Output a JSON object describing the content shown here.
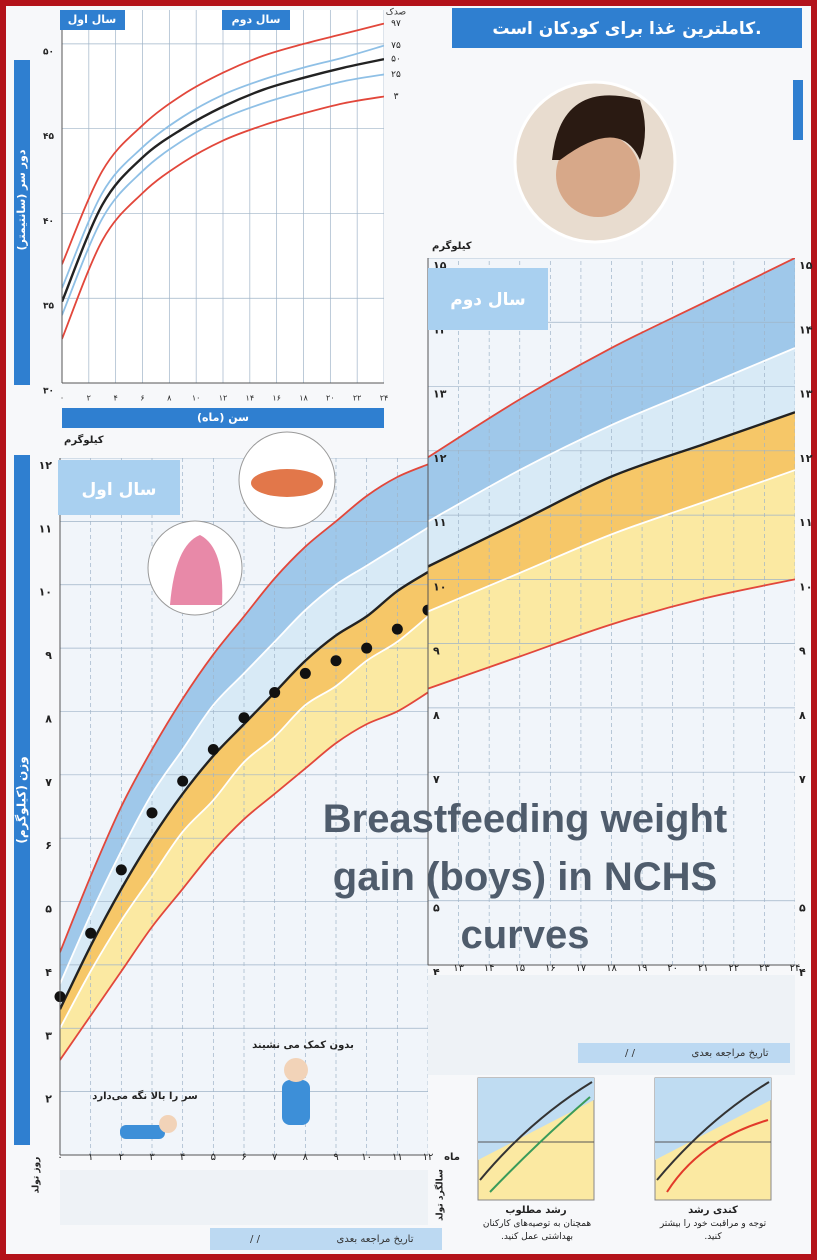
{
  "header": {
    "title": "کاملترین غذا برای کودکان است."
  },
  "overlay_title": "Breastfeeding weight gain (boys) in NCHS curves",
  "chart_data": [
    {
      "type": "line",
      "year_labels": [
        "سال اول",
        "سال دوم"
      ],
      "xlabel": "سن (ماه)",
      "ylabel": "دور سر (سانتیمتر)",
      "legend_title": "صدک",
      "x": [
        0,
        3,
        6,
        9,
        12,
        15,
        18,
        21,
        24
      ],
      "xlim": [
        0,
        24
      ],
      "ylim": [
        30,
        52
      ],
      "xticks": [
        {
          "value": 0,
          "label": "۰"
        },
        {
          "value": 2,
          "label": "۲"
        },
        {
          "value": 4,
          "label": "۴"
        },
        {
          "value": 6,
          "label": "۶"
        },
        {
          "value": 8,
          "label": "۸"
        },
        {
          "value": 10,
          "label": "۱۰"
        },
        {
          "value": 12,
          "label": "۱۲"
        },
        {
          "value": 14,
          "label": "۱۴"
        },
        {
          "value": 16,
          "label": "۱۶"
        },
        {
          "value": 18,
          "label": "۱۸"
        },
        {
          "value": 20,
          "label": "۲۰"
        },
        {
          "value": 22,
          "label": "۲۲"
        },
        {
          "value": 24,
          "label": "۲۴"
        }
      ],
      "yticks": [
        {
          "value": 30,
          "label": "۳۰"
        },
        {
          "value": 35,
          "label": "۳۵"
        },
        {
          "value": 40,
          "label": "۴۰"
        },
        {
          "value": 45,
          "label": "۴۵"
        },
        {
          "value": 50,
          "label": "۵۰"
        }
      ],
      "grid": true,
      "series": [
        {
          "name": "۹۷",
          "color": "#e2473b",
          "values": [
            37.0,
            42.5,
            45.2,
            47.0,
            48.3,
            49.3,
            50.0,
            50.6,
            51.2
          ]
        },
        {
          "name": "۷۵",
          "color": "#8fc0e6",
          "values": [
            35.6,
            41.2,
            43.9,
            45.7,
            47.0,
            47.9,
            48.6,
            49.2,
            49.9
          ]
        },
        {
          "name": "۵۰",
          "color": "#222222",
          "values": [
            34.8,
            40.5,
            43.3,
            45.0,
            46.3,
            47.3,
            48.0,
            48.6,
            49.1
          ]
        },
        {
          "name": "۲۵",
          "color": "#8fc0e6",
          "values": [
            34.0,
            39.7,
            42.5,
            44.3,
            45.6,
            46.5,
            47.2,
            47.8,
            48.2
          ]
        },
        {
          "name": "۳",
          "color": "#e2473b",
          "values": [
            32.6,
            38.4,
            41.2,
            43.0,
            44.3,
            45.2,
            45.9,
            46.5,
            46.9
          ]
        }
      ]
    },
    {
      "type": "line",
      "year_label": "سال اول",
      "y_unit": "کیلوگرم",
      "ylabel": "وزن (کیلوگرم)",
      "x_unit": "ماه",
      "start_label": "روز تولد",
      "end_label": "سالگرد تولد",
      "x": [
        0,
        1,
        2,
        3,
        4,
        5,
        6,
        7,
        8,
        9,
        10,
        11,
        12
      ],
      "xlim": [
        0,
        12
      ],
      "ylim": [
        1,
        12
      ],
      "xticks": [
        {
          "value": 0,
          "label": "۰"
        },
        {
          "value": 1,
          "label": "۱"
        },
        {
          "value": 2,
          "label": "۲"
        },
        {
          "value": 3,
          "label": "۳"
        },
        {
          "value": 4,
          "label": "۴"
        },
        {
          "value": 5,
          "label": "۵"
        },
        {
          "value": 6,
          "label": "۶"
        },
        {
          "value": 7,
          "label": "۷"
        },
        {
          "value": 8,
          "label": "۸"
        },
        {
          "value": 9,
          "label": "۹"
        },
        {
          "value": 10,
          "label": "۱۰"
        },
        {
          "value": 11,
          "label": "۱۱"
        },
        {
          "value": 12,
          "label": "۱۲"
        }
      ],
      "yticks": [
        {
          "value": 2,
          "label": "۲"
        },
        {
          "value": 3,
          "label": "۳"
        },
        {
          "value": 4,
          "label": "۴"
        },
        {
          "value": 5,
          "label": "۵"
        },
        {
          "value": 6,
          "label": "۶"
        },
        {
          "value": 7,
          "label": "۷"
        },
        {
          "value": 8,
          "label": "۸"
        },
        {
          "value": 9,
          "label": "۹"
        },
        {
          "value": 10,
          "label": "۱۰"
        },
        {
          "value": 11,
          "label": "۱۱"
        },
        {
          "value": 12,
          "label": "۱۲"
        }
      ],
      "grid": true,
      "band_colors": [
        "#9fc8ea",
        "#d8eaf6",
        "#f6c768",
        "#fbe9a2"
      ],
      "series": [
        {
          "color": "#e2473b",
          "style": "line",
          "values": [
            4.2,
            5.4,
            6.5,
            7.4,
            8.2,
            8.9,
            9.5,
            10.1,
            10.6,
            11.0,
            11.4,
            11.7,
            11.9
          ]
        },
        {
          "color": "#ffffff",
          "style": "line",
          "values": [
            3.7,
            4.8,
            5.8,
            6.7,
            7.4,
            8.1,
            8.6,
            9.1,
            9.6,
            10.0,
            10.3,
            10.6,
            10.9
          ]
        },
        {
          "color": "#222222",
          "style": "line",
          "values": [
            3.3,
            4.3,
            5.2,
            6.0,
            6.7,
            7.3,
            7.8,
            8.3,
            8.8,
            9.2,
            9.5,
            9.9,
            10.2
          ]
        },
        {
          "color": "#ffffff",
          "style": "line",
          "values": [
            3.0,
            3.9,
            4.7,
            5.4,
            6.1,
            6.6,
            7.2,
            7.6,
            8.1,
            8.4,
            8.8,
            9.1,
            9.5
          ]
        },
        {
          "color": "#e2473b",
          "style": "line",
          "values": [
            2.5,
            3.2,
            3.9,
            4.6,
            5.2,
            5.8,
            6.3,
            6.7,
            7.1,
            7.5,
            7.8,
            8.0,
            8.3
          ]
        },
        {
          "color": "#111111",
          "style": "points",
          "values": [
            3.5,
            4.5,
            5.5,
            6.4,
            6.9,
            7.4,
            7.9,
            8.3,
            8.6,
            8.8,
            9.0,
            9.3,
            9.6
          ]
        }
      ]
    },
    {
      "type": "line",
      "year_label": "سال دوم",
      "y_unit": "کیلوگرم",
      "x": [
        12,
        15,
        18,
        21,
        24
      ],
      "xlim": [
        12,
        24
      ],
      "ylim": [
        4,
        15
      ],
      "xticks": [
        {
          "value": 13,
          "label": "۱۳"
        },
        {
          "value": 14,
          "label": "۱۴"
        },
        {
          "value": 15,
          "label": "۱۵"
        },
        {
          "value": 16,
          "label": "۱۶"
        },
        {
          "value": 17,
          "label": "۱۷"
        },
        {
          "value": 18,
          "label": "۱۸"
        },
        {
          "value": 19,
          "label": "۱۹"
        },
        {
          "value": 20,
          "label": "۲۰"
        },
        {
          "value": 21,
          "label": "۲۱"
        },
        {
          "value": 22,
          "label": "۲۲"
        },
        {
          "value": 23,
          "label": "۲۳"
        },
        {
          "value": 24,
          "label": "۲۴"
        }
      ],
      "yticks": [
        {
          "value": 4,
          "label": "۴"
        },
        {
          "value": 5,
          "label": "۵"
        },
        {
          "value": 7,
          "label": "۷"
        },
        {
          "value": 8,
          "label": "۸"
        },
        {
          "value": 9,
          "label": "۹"
        },
        {
          "value": 10,
          "label": "۱۰"
        },
        {
          "value": 11,
          "label": "۱۱"
        },
        {
          "value": 12,
          "label": "۱۲"
        },
        {
          "value": 13,
          "label": "۱۳"
        },
        {
          "value": 14,
          "label": "۱۴"
        },
        {
          "value": 15,
          "label": "۱۵"
        }
      ],
      "grid": true,
      "band_colors": [
        "#9fc8ea",
        "#d8eaf6",
        "#f6c768",
        "#fbe9a2"
      ],
      "series": [
        {
          "color": "#e2473b",
          "style": "line",
          "values": [
            11.9,
            12.8,
            13.6,
            14.3,
            15.0
          ]
        },
        {
          "color": "#ffffff",
          "style": "line",
          "values": [
            10.9,
            11.7,
            12.4,
            13.0,
            13.6
          ]
        },
        {
          "color": "#222222",
          "style": "line",
          "values": [
            10.2,
            10.9,
            11.6,
            12.1,
            12.6
          ]
        },
        {
          "color": "#ffffff",
          "style": "line",
          "values": [
            9.5,
            10.1,
            10.7,
            11.2,
            11.7
          ]
        },
        {
          "color": "#e2473b",
          "style": "line",
          "values": [
            8.3,
            8.8,
            9.3,
            9.7,
            10.0
          ]
        }
      ]
    }
  ],
  "milestones": [
    "سر را بالا نگه می‌دارد",
    "بدون کمک می نشیند"
  ],
  "next_visit": {
    "label": "تاریخ مراجعه بعدی",
    "slashes": "/ /"
  },
  "guides": [
    {
      "title": "رشد مطلوب",
      "text": "همچنان به توصیه‌های کارکنان بهداشتی عمل کنید."
    },
    {
      "title": "کندی رشد",
      "text": "توجه و مراقبت خود را بیشتر کنید."
    }
  ]
}
